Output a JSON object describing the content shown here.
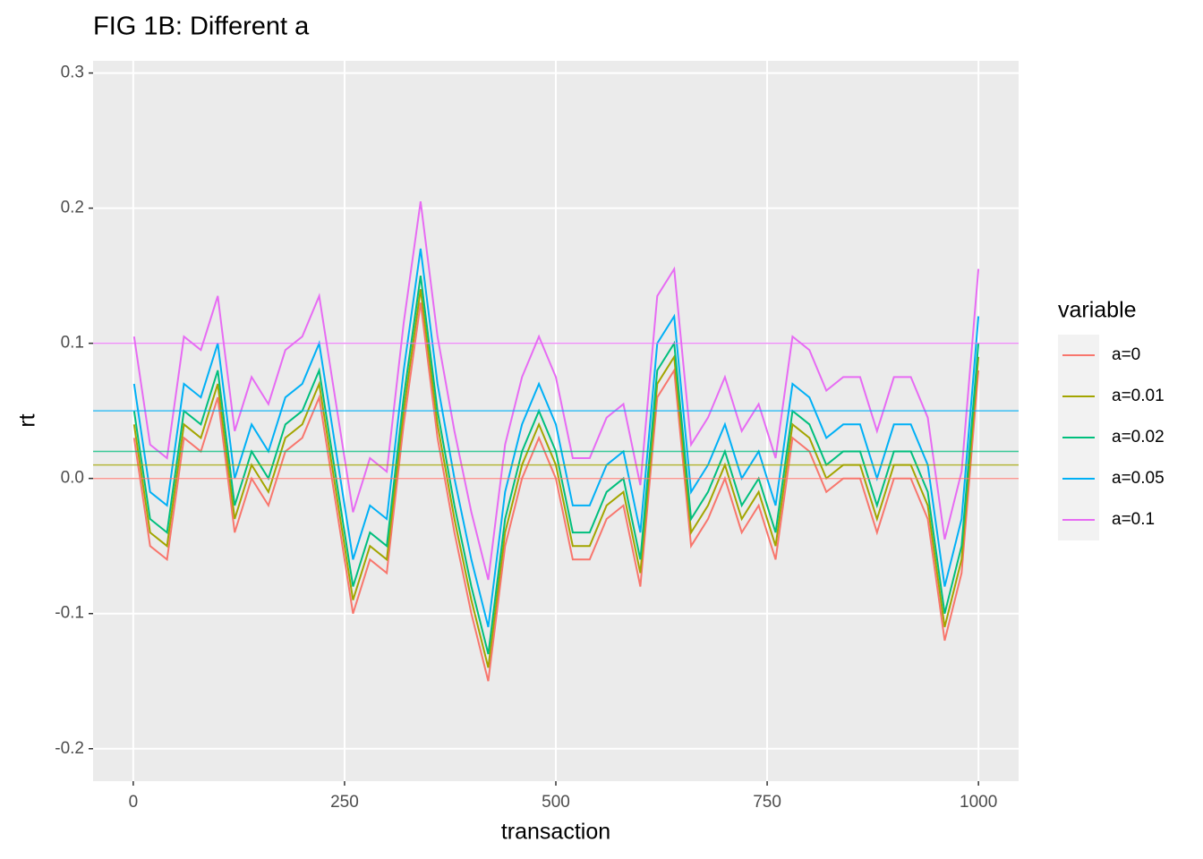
{
  "chart_data": {
    "type": "line",
    "title": "FIG 1B: Different a",
    "x_label": "transaction",
    "y_label": "rt",
    "legend_title": "variable",
    "legend_position": "right",
    "grid": true,
    "x": [
      1,
      20,
      40,
      60,
      80,
      100,
      120,
      140,
      160,
      180,
      200,
      220,
      240,
      260,
      280,
      300,
      320,
      340,
      360,
      380,
      400,
      420,
      440,
      460,
      480,
      500,
      520,
      540,
      560,
      580,
      600,
      620,
      640,
      660,
      680,
      700,
      720,
      740,
      760,
      780,
      800,
      820,
      840,
      860,
      880,
      900,
      920,
      940,
      960,
      980,
      1000
    ],
    "xlim": [
      -47.5,
      1047.5
    ],
    "xticks": [
      0,
      250,
      500,
      750,
      1000
    ],
    "ylim": [
      -0.224,
      0.309
    ],
    "yticks": [
      {
        "value": -0.2,
        "label": "-0.2"
      },
      {
        "value": -0.1,
        "label": "-0.1"
      },
      {
        "value": 0,
        "label": "0.0"
      },
      0.1,
      0.2,
      0.3
    ],
    "series": [
      {
        "name": "a=0",
        "color": "#F8766D",
        "hline": 0,
        "values": [
          0.03,
          -0.05,
          -0.06,
          0.03,
          0.02,
          0.06,
          -0.04,
          0,
          -0.02,
          0.02,
          0.03,
          0.06,
          -0.02,
          -0.1,
          -0.06,
          -0.07,
          0.04,
          0.13,
          0.03,
          -0.04,
          -0.1,
          -0.15,
          -0.05,
          0,
          0.03,
          0,
          -0.06,
          -0.06,
          -0.03,
          -0.02,
          -0.08,
          0.06,
          0.08,
          -0.05,
          -0.03,
          0,
          -0.04,
          -0.02,
          -0.06,
          0.03,
          0.02,
          -0.01,
          0,
          0,
          -0.04,
          0,
          0,
          -0.03,
          -0.12,
          -0.07,
          0.08
        ]
      },
      {
        "name": "a=0.01",
        "color": "#A3A500",
        "hline": 0.01,
        "values": [
          0.04,
          -0.04,
          -0.05,
          0.04,
          0.03,
          0.07,
          -0.03,
          0.01,
          -0.01,
          0.03,
          0.04,
          0.07,
          -0.01,
          -0.09,
          -0.05,
          -0.06,
          0.05,
          0.14,
          0.04,
          -0.03,
          -0.09,
          -0.14,
          -0.04,
          0.01,
          0.04,
          0.01,
          -0.05,
          -0.05,
          -0.02,
          -0.01,
          -0.07,
          0.07,
          0.09,
          -0.04,
          -0.02,
          0.01,
          -0.03,
          -0.01,
          -0.05,
          0.04,
          0.03,
          0,
          0.01,
          0.01,
          -0.03,
          0.01,
          0.01,
          -0.02,
          -0.11,
          -0.06,
          0.09
        ]
      },
      {
        "name": "a=0.02",
        "color": "#00BF7D",
        "hline": 0.02,
        "values": [
          0.05,
          -0.03,
          -0.04,
          0.05,
          0.04,
          0.08,
          -0.02,
          0.02,
          0,
          0.04,
          0.05,
          0.08,
          0,
          -0.08,
          -0.04,
          -0.05,
          0.06,
          0.15,
          0.05,
          -0.02,
          -0.08,
          -0.13,
          -0.03,
          0.02,
          0.05,
          0.02,
          -0.04,
          -0.04,
          -0.01,
          0,
          -0.06,
          0.08,
          0.1,
          -0.03,
          -0.01,
          0.02,
          -0.02,
          0,
          -0.04,
          0.05,
          0.04,
          0.01,
          0.02,
          0.02,
          -0.02,
          0.02,
          0.02,
          -0.01,
          -0.1,
          -0.05,
          0.1
        ]
      },
      {
        "name": "a=0.05",
        "color": "#00B0F6",
        "hline": 0.05,
        "values": [
          0.07,
          -0.01,
          -0.02,
          0.07,
          0.06,
          0.1,
          0,
          0.04,
          0.02,
          0.06,
          0.07,
          0.1,
          0.02,
          -0.06,
          -0.02,
          -0.03,
          0.08,
          0.17,
          0.07,
          0,
          -0.06,
          -0.11,
          -0.01,
          0.04,
          0.07,
          0.04,
          -0.02,
          -0.02,
          0.01,
          0.02,
          -0.04,
          0.1,
          0.12,
          -0.01,
          0.01,
          0.04,
          0,
          0.02,
          -0.02,
          0.07,
          0.06,
          0.03,
          0.04,
          0.04,
          0,
          0.04,
          0.04,
          0.01,
          -0.08,
          -0.03,
          0.12
        ]
      },
      {
        "name": "a=0.1",
        "color": "#E76BF3",
        "hline": 0.1,
        "values": [
          0.105,
          0.025,
          0.015,
          0.105,
          0.095,
          0.135,
          0.035,
          0.075,
          0.055,
          0.095,
          0.105,
          0.135,
          0.055,
          -0.025,
          0.015,
          0.005,
          0.115,
          0.205,
          0.105,
          0.035,
          -0.025,
          -0.075,
          0.025,
          0.075,
          0.105,
          0.075,
          0.015,
          0.015,
          0.045,
          0.055,
          -0.005,
          0.135,
          0.155,
          0.025,
          0.045,
          0.075,
          0.035,
          0.055,
          0.015,
          0.105,
          0.095,
          0.065,
          0.075,
          0.075,
          0.035,
          0.075,
          0.075,
          0.045,
          -0.045,
          0.005,
          0.155
        ]
      }
    ]
  }
}
